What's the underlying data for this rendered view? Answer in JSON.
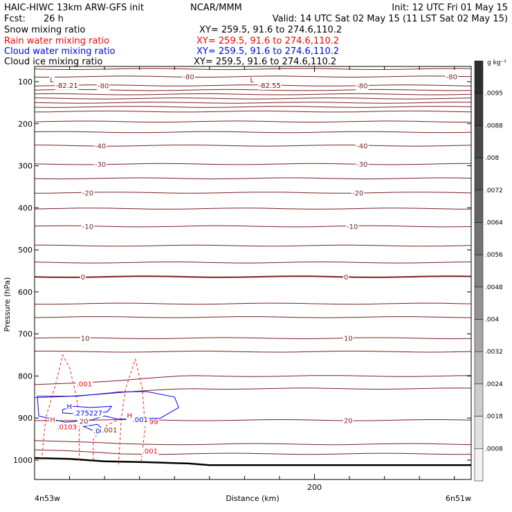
{
  "header": {
    "title_left": "HAIC-HIWC 13km ARW-GFS init",
    "title_center": "NCAR/MMM",
    "init": "Init: 12 UTC Fri 01 May 15",
    "fcst_label": "Fcst:",
    "fcst_value": "26 h",
    "valid": "Valid: 14 UTC Sat 02 May 15 (11 LST Sat 02 May 15)"
  },
  "fields": [
    {
      "name": "Snow mixing ratio",
      "xy": "XY= 259.5, 91.6 to 274.6,110.2",
      "color": "#000000"
    },
    {
      "name": "Rain water mixing ratio",
      "xy": "XY= 259.5, 91.6 to 274.6,110.2",
      "color": "#ff0000"
    },
    {
      "name": "Cloud water mixing ratio",
      "xy": "XY= 259.5, 91.6 to 274.6,110.2",
      "color": "#0000ff"
    },
    {
      "name": "Cloud ice mixing ratio",
      "xy": "XY= 259.5, 91.6 to 274.6,110.2",
      "color": "#000000"
    }
  ],
  "chart_data": {
    "type": "contour cross-section",
    "ylabel": "Pressure (hPa)",
    "xlabel": "Distance (km)",
    "x_start_label": "4n53w",
    "x_end_label": "6n51w",
    "xlim": [
      0,
      312
    ],
    "ylim": [
      1050,
      50
    ],
    "y_ticks": [
      100,
      200,
      300,
      400,
      500,
      600,
      700,
      800,
      900,
      1000
    ],
    "x_ticks": [
      200
    ],
    "colorbar": {
      "unit": "g kg⁻¹",
      "labels": [
        ".0095",
        ".0088",
        ".008",
        ".0072",
        ".0064",
        ".0056",
        ".0048",
        ".004",
        ".0032",
        ".0024",
        ".0018",
        ".0008"
      ],
      "colors": [
        "#2e2e2e",
        "#3b3b3b",
        "#484848",
        "#555555",
        "#636363",
        "#727272",
        "#828282",
        "#939393",
        "#a6a6a6",
        "#b9b9b9",
        "#cdcdcd",
        "#e1e1e1",
        "#f2f2f2"
      ]
    },
    "temperature_labels": [
      {
        "text": "-80",
        "x": 106,
        "p": 88
      },
      {
        "text": "-80",
        "x": 294,
        "p": 88
      },
      {
        "text": "-80",
        "x": 45,
        "p": 109
      },
      {
        "text": "-80",
        "x": 230,
        "p": 109
      },
      {
        "text": "-40",
        "x": 43,
        "p": 252
      },
      {
        "text": "-40",
        "x": 230,
        "p": 252
      },
      {
        "text": "-30",
        "x": 43,
        "p": 296
      },
      {
        "text": "-30",
        "x": 230,
        "p": 296
      },
      {
        "text": "-20",
        "x": 34,
        "p": 364
      },
      {
        "text": "-20",
        "x": 227,
        "p": 364
      },
      {
        "text": "-10",
        "x": 34,
        "p": 444
      },
      {
        "text": "-10",
        "x": 223,
        "p": 444
      },
      {
        "text": "0",
        "x": 33,
        "p": 564
      },
      {
        "text": "0",
        "x": 221,
        "p": 564
      },
      {
        "text": "10",
        "x": 33,
        "p": 710
      },
      {
        "text": "10",
        "x": 221,
        "p": 710
      },
      {
        "text": "20",
        "x": 31,
        "p": 905
      },
      {
        "text": "20",
        "x": 221,
        "p": 905
      }
    ],
    "temperature_contour_levels_hpa": [
      70,
      88,
      109,
      120,
      130,
      140,
      150,
      160,
      171,
      195,
      220,
      252,
      296,
      330,
      364,
      402,
      444,
      490,
      530,
      564,
      628,
      660,
      710,
      742,
      800,
      830,
      905,
      962,
      985
    ],
    "extrema_labels": [
      {
        "text": "L",
        "x": 11,
        "p": 95,
        "color": "#800000"
      },
      {
        "text": "-82.21",
        "x": 15,
        "p": 108,
        "color": "#800000"
      },
      {
        "text": "L",
        "x": 154,
        "p": 95,
        "color": "#800000"
      },
      {
        "text": "-82.55",
        "x": 160,
        "p": 108,
        "color": "#800000"
      }
    ],
    "rain_labels": [
      {
        "text": ".001",
        "x": 30,
        "p": 818
      },
      {
        "text": "H",
        "x": 11,
        "p": 903
      },
      {
        "text": ".0103",
        "x": 16,
        "p": 920
      },
      {
        "text": "H",
        "x": 66,
        "p": 893
      },
      {
        "text": ".00299",
        "x": 71,
        "p": 908
      },
      {
        "text": ".001",
        "x": 77,
        "p": 978
      }
    ],
    "cloud_labels": [
      {
        "text": "H",
        "x": 23,
        "p": 872
      },
      {
        "text": ".275227",
        "x": 28,
        "p": 887
      },
      {
        "text": ".001",
        "x": 70,
        "p": 903
      },
      {
        "text": ".001",
        "x": 42,
        "p": 930
      }
    ],
    "mixed_labels": [
      {
        "text": "20",
        "x": 32,
        "p": 907
      },
      {
        "text": ".001",
        "x": 48,
        "p": 928
      }
    ]
  }
}
